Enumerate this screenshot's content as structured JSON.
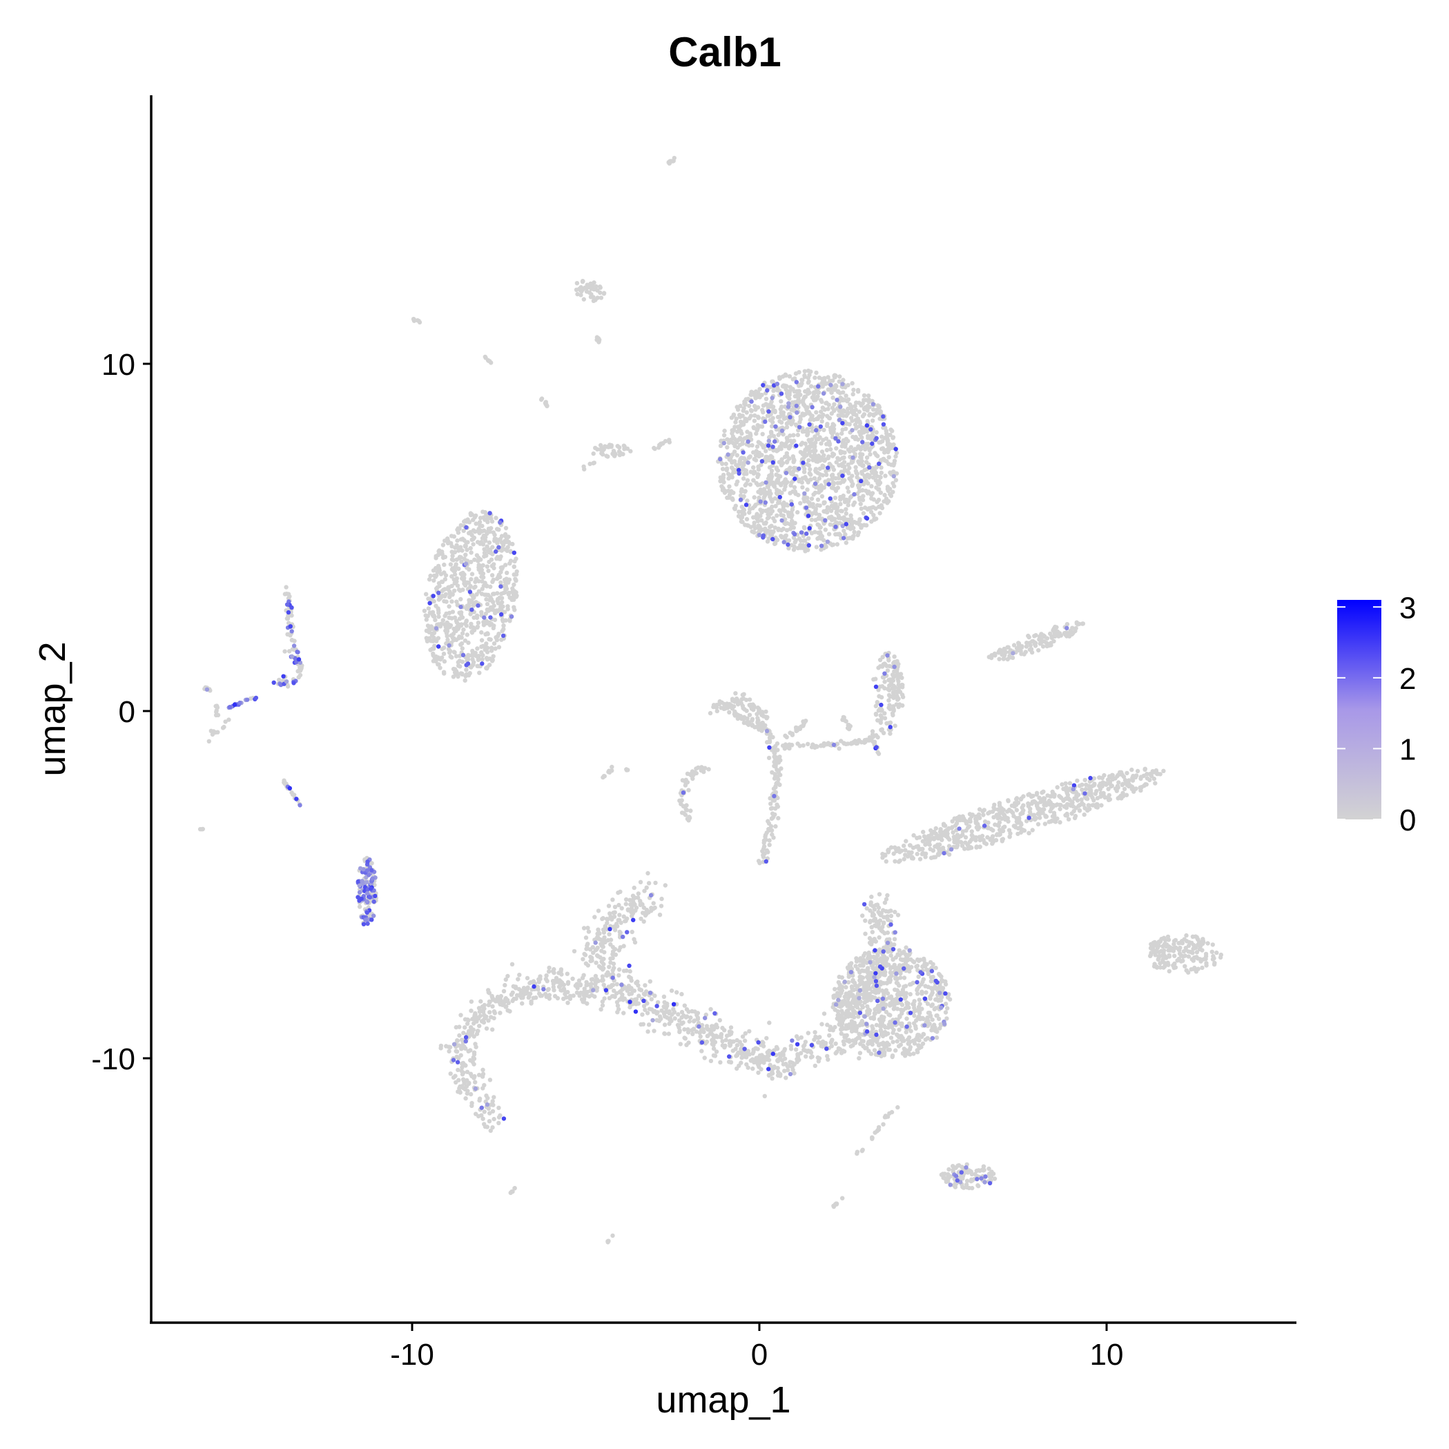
{
  "chart_data": {
    "type": "scatter",
    "title": "Calb1",
    "xlabel": "umap_1",
    "ylabel": "umap_2",
    "xlim": [
      -17.5,
      15.5
    ],
    "ylim": [
      -17.5,
      17.5
    ],
    "x_ticks": [
      -10,
      0,
      10
    ],
    "y_ticks": [
      10,
      0,
      -10
    ],
    "x_tick_labels": [
      "-10",
      "0",
      "10"
    ],
    "y_tick_labels": [
      "10",
      "0",
      "-10"
    ],
    "grid": false,
    "legend": {
      "position": "right",
      "kind": "colorbar",
      "min": 0,
      "max": 3.1,
      "ticks": [
        3,
        2,
        1,
        0
      ],
      "tick_labels": [
        "3",
        "2",
        "1",
        "0"
      ],
      "low_color": "#d3d3d3",
      "high_color": "#0000ff"
    },
    "colors": {
      "background_point": "#d3d3d3",
      "high_expression": "#0000ff"
    },
    "clusters": [
      {
        "cx": 1.4,
        "cy": 7.2,
        "rx": 2.6,
        "ry": 2.6,
        "angle": 20,
        "n": 1700,
        "expr_rate": 0.05
      },
      {
        "cx": -8.3,
        "cy": 3.3,
        "rx": 1.3,
        "ry": 2.5,
        "angle": -10,
        "n": 750,
        "expr_rate": 0.03
      },
      {
        "cx": 3.8,
        "cy": -8.4,
        "rx": 1.7,
        "ry": 1.6,
        "angle": 0,
        "n": 700,
        "expr_rate": 0.05
      },
      {
        "cx": 7.6,
        "cy": -3.0,
        "rx": 4.3,
        "ry": 0.55,
        "angle": 17,
        "n": 650,
        "expr_rate": 0.02
      },
      {
        "cx": 12.2,
        "cy": -7.0,
        "rx": 1.1,
        "ry": 0.55,
        "angle": 0,
        "n": 160,
        "expr_rate": 0.01
      },
      {
        "cx": 6.0,
        "cy": -13.4,
        "rx": 0.8,
        "ry": 0.35,
        "angle": 0,
        "n": 110,
        "expr_rate": 0.1
      },
      {
        "cx": 8.0,
        "cy": 2.0,
        "rx": 1.5,
        "ry": 0.25,
        "angle": 20,
        "n": 130,
        "expr_rate": 0.02
      },
      {
        "cx": 3.7,
        "cy": 0.5,
        "rx": 0.45,
        "ry": 1.2,
        "angle": 0,
        "n": 140,
        "expr_rate": 0.05
      },
      {
        "cx": -11.3,
        "cy": -5.2,
        "rx": 0.28,
        "ry": 1.0,
        "angle": 0,
        "n": 140,
        "expr_rate": 0.5
      },
      {
        "cx": -4.9,
        "cy": 12.1,
        "rx": 0.45,
        "ry": 0.3,
        "angle": -20,
        "n": 45,
        "expr_rate": 0.0
      },
      {
        "cx": -4.3,
        "cy": 7.5,
        "rx": 0.6,
        "ry": 0.2,
        "angle": 0,
        "n": 35,
        "expr_rate": 0.0
      }
    ],
    "paths": [
      {
        "pts": [
          [
            -3.2,
            -5.4
          ],
          [
            -4.5,
            -6.2
          ],
          [
            -4.6,
            -7.5
          ],
          [
            -3.7,
            -8.3
          ],
          [
            -1.5,
            -9.3
          ],
          [
            0.5,
            -10.2
          ],
          [
            2.4,
            -9.4
          ],
          [
            3.6,
            -6.8
          ],
          [
            3.4,
            -5.6
          ]
        ],
        "width": 0.6,
        "n": 1000,
        "expr_rate": 0.04
      },
      {
        "pts": [
          [
            -4.7,
            -8.1
          ],
          [
            -6.0,
            -7.8
          ],
          [
            -7.5,
            -8.2
          ],
          [
            -8.6,
            -9.5
          ],
          [
            -8.3,
            -11.0
          ],
          [
            -7.7,
            -11.8
          ]
        ],
        "width": 0.45,
        "n": 380,
        "expr_rate": 0.03
      },
      {
        "pts": [
          [
            -0.9,
            0.0
          ],
          [
            0.2,
            -0.5
          ],
          [
            0.5,
            -1.5
          ],
          [
            0.4,
            -3.2
          ],
          [
            0.0,
            -4.5
          ]
        ],
        "width": 0.15,
        "n": 160,
        "expr_rate": 0.02
      },
      {
        "pts": [
          [
            -1.3,
            0.1
          ],
          [
            -0.5,
            0.3
          ],
          [
            0.1,
            -0.2
          ]
        ],
        "width": 0.18,
        "n": 70,
        "expr_rate": 0.0
      },
      {
        "pts": [
          [
            0.6,
            -1.0
          ],
          [
            1.7,
            -1.0
          ],
          [
            2.9,
            -0.9
          ],
          [
            3.5,
            -0.7
          ]
        ],
        "width": 0.08,
        "n": 70,
        "expr_rate": 0.02
      },
      {
        "pts": [
          [
            0.7,
            -0.8
          ],
          [
            1.4,
            -0.3
          ]
        ],
        "width": 0.08,
        "n": 20,
        "expr_rate": 0.0
      },
      {
        "pts": [
          [
            -1.4,
            -1.6
          ],
          [
            -2.0,
            -1.8
          ],
          [
            -2.3,
            -2.5
          ],
          [
            -2.0,
            -3.1
          ]
        ],
        "width": 0.1,
        "n": 50,
        "expr_rate": 0.03
      },
      {
        "pts": [
          [
            2.4,
            -0.1
          ],
          [
            2.6,
            -0.5
          ]
        ],
        "width": 0.06,
        "n": 12,
        "expr_rate": 0.0
      },
      {
        "pts": [
          [
            -13.6,
            3.6
          ],
          [
            -13.5,
            2.2
          ],
          [
            -13.3,
            1.6
          ]
        ],
        "width": 0.1,
        "n": 45,
        "expr_rate": 0.35
      },
      {
        "pts": [
          [
            -13.6,
            1.7
          ],
          [
            -13.2,
            1.3
          ],
          [
            -13.3,
            0.9
          ],
          [
            -13.9,
            0.8
          ]
        ],
        "width": 0.13,
        "n": 45,
        "expr_rate": 0.4
      },
      {
        "pts": [
          [
            -15.3,
            0.1
          ],
          [
            -14.5,
            0.4
          ]
        ],
        "width": 0.05,
        "n": 16,
        "expr_rate": 0.7
      },
      {
        "pts": [
          [
            -15.6,
            0.2
          ],
          [
            -15.8,
            -0.9
          ],
          [
            -15.3,
            -0.2
          ]
        ],
        "width": 0.06,
        "n": 18,
        "expr_rate": 0.1
      },
      {
        "pts": [
          [
            -13.7,
            -2.0
          ],
          [
            -13.2,
            -2.7
          ]
        ],
        "width": 0.05,
        "n": 18,
        "expr_rate": 0.3
      },
      {
        "pts": [
          [
            -16.1,
            0.7
          ],
          [
            -15.8,
            0.6
          ]
        ],
        "width": 0.04,
        "n": 6,
        "expr_rate": 0.2
      },
      {
        "pts": [
          [
            -3.1,
            7.5
          ],
          [
            -2.6,
            7.8
          ]
        ],
        "width": 0.05,
        "n": 12,
        "expr_rate": 0.0
      },
      {
        "pts": [
          [
            -5.1,
            7.0
          ],
          [
            -4.7,
            7.2
          ]
        ],
        "width": 0.05,
        "n": 5,
        "expr_rate": 0.0
      },
      {
        "pts": [
          [
            -6.3,
            9.0
          ],
          [
            -6.1,
            8.8
          ]
        ],
        "width": 0.04,
        "n": 8,
        "expr_rate": 0.0
      },
      {
        "pts": [
          [
            -2.6,
            15.8
          ],
          [
            -2.4,
            15.9
          ]
        ],
        "width": 0.04,
        "n": 10,
        "expr_rate": 0.0
      },
      {
        "pts": [
          [
            -10.0,
            11.3
          ],
          [
            -9.8,
            11.2
          ]
        ],
        "width": 0.04,
        "n": 8,
        "expr_rate": 0.0
      },
      {
        "pts": [
          [
            -7.9,
            10.2
          ],
          [
            -7.7,
            10.0
          ]
        ],
        "width": 0.03,
        "n": 6,
        "expr_rate": 0.0
      },
      {
        "pts": [
          [
            -4.5,
            -1.9
          ],
          [
            -4.2,
            -1.6
          ]
        ],
        "width": 0.04,
        "n": 8,
        "expr_rate": 0.0
      },
      {
        "pts": [
          [
            -3.9,
            -1.7
          ],
          [
            -3.8,
            -1.7
          ]
        ],
        "width": 0.03,
        "n": 3,
        "expr_rate": 0.0
      },
      {
        "pts": [
          [
            -16.1,
            -3.4
          ],
          [
            -16.0,
            -3.4
          ]
        ],
        "width": 0.03,
        "n": 3,
        "expr_rate": 0.0
      },
      {
        "pts": [
          [
            2.8,
            -12.8
          ],
          [
            3.8,
            -11.6
          ]
        ],
        "width": 0.05,
        "n": 14,
        "expr_rate": 0.0
      },
      {
        "pts": [
          [
            3.6,
            -11.7
          ],
          [
            4.0,
            -11.4
          ]
        ],
        "width": 0.04,
        "n": 6,
        "expr_rate": 0.0
      },
      {
        "pts": [
          [
            -7.2,
            -13.9
          ],
          [
            -7.0,
            -13.7
          ]
        ],
        "width": 0.03,
        "n": 6,
        "expr_rate": 0.0
      },
      {
        "pts": [
          [
            -4.4,
            -15.3
          ],
          [
            -4.2,
            -15.1
          ]
        ],
        "width": 0.03,
        "n": 6,
        "expr_rate": 0.0
      },
      {
        "pts": [
          [
            2.1,
            -14.3
          ],
          [
            2.4,
            -14.0
          ]
        ],
        "width": 0.03,
        "n": 8,
        "expr_rate": 0.0
      },
      {
        "pts": [
          [
            -4.7,
            10.7
          ],
          [
            -4.6,
            10.7
          ]
        ],
        "width": 0.05,
        "n": 6,
        "expr_rate": 0.0
      },
      {
        "pts": [
          [
            3.2,
            -0.5
          ],
          [
            3.4,
            -1.2
          ]
        ],
        "width": 0.05,
        "n": 12,
        "expr_rate": 0.1
      }
    ]
  }
}
